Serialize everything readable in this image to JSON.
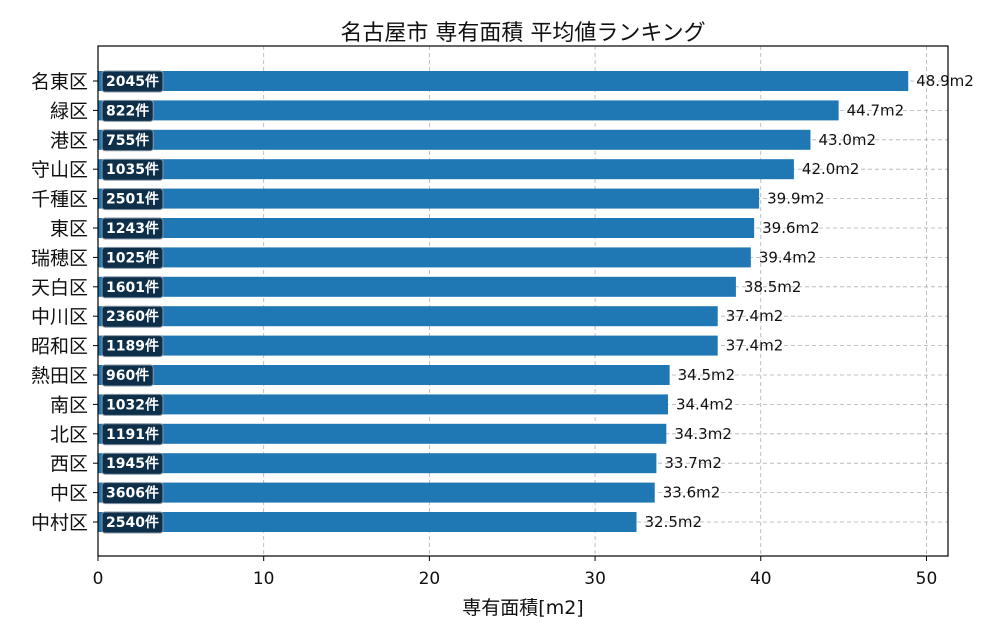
{
  "chart_data": {
    "type": "bar",
    "orientation": "horizontal",
    "title": "名古屋市 専有面積 平均値ランキング",
    "xlabel": "専有面積[m2]",
    "ylabel": "",
    "xlim": [
      0,
      51.3
    ],
    "x_ticks": [
      0,
      10,
      20,
      30,
      40,
      50
    ],
    "x_tick_labels": [
      "0",
      "10",
      "20",
      "30",
      "40",
      "50"
    ],
    "grid": true,
    "value_suffix": "m2",
    "count_suffix": "件",
    "bar_color": "#1f77b4",
    "badge_color": "#0e2f4a",
    "categories": [
      "名東区",
      "緑区",
      "港区",
      "守山区",
      "千種区",
      "東区",
      "瑞穂区",
      "天白区",
      "中川区",
      "昭和区",
      "熱田区",
      "南区",
      "北区",
      "西区",
      "中区",
      "中村区"
    ],
    "values": [
      48.9,
      44.7,
      43.0,
      42.0,
      39.9,
      39.6,
      39.4,
      38.5,
      37.4,
      37.4,
      34.5,
      34.4,
      34.3,
      33.7,
      33.6,
      32.5
    ],
    "value_labels": [
      "48.9m2",
      "44.7m2",
      "43.0m2",
      "42.0m2",
      "39.9m2",
      "39.6m2",
      "39.4m2",
      "38.5m2",
      "37.4m2",
      "37.4m2",
      "34.5m2",
      "34.4m2",
      "34.3m2",
      "33.7m2",
      "33.6m2",
      "32.5m2"
    ],
    "counts": [
      2045,
      822,
      755,
      1035,
      2501,
      1243,
      1025,
      1601,
      2360,
      1189,
      960,
      1032,
      1191,
      1945,
      3606,
      2540
    ],
    "count_labels": [
      "2045件",
      "822件",
      "755件",
      "1035件",
      "2501件",
      "1243件",
      "1025件",
      "1601件",
      "2360件",
      "1189件",
      "960件",
      "1032件",
      "1191件",
      "1945件",
      "3606件",
      "2540件"
    ]
  }
}
